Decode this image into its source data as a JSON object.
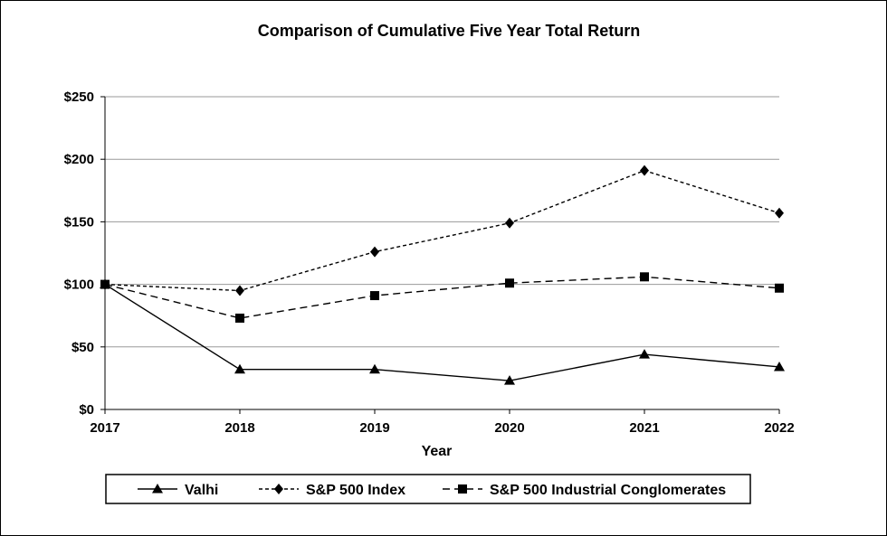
{
  "chart_data": {
    "type": "line",
    "title": "Comparison of Cumulative Five Year Total Return",
    "xlabel": "Year",
    "ylabel": "",
    "x": [
      "2017",
      "2018",
      "2019",
      "2020",
      "2021",
      "2022"
    ],
    "ylim": [
      0,
      250
    ],
    "yticks": [
      0,
      50,
      100,
      150,
      200,
      250
    ],
    "ytick_labels": [
      "$0",
      "$50",
      "$100",
      "$150",
      "$200",
      "$250"
    ],
    "grid": true,
    "legend_position": "bottom",
    "series": [
      {
        "name": "Valhi",
        "values": [
          100,
          32,
          32,
          23,
          44,
          34
        ],
        "marker": "triangle",
        "dash": "solid",
        "color": "#000000"
      },
      {
        "name": "S&P 500 Index",
        "values": [
          100,
          95,
          126,
          149,
          191,
          157
        ],
        "marker": "diamond",
        "dash": "short-dash",
        "color": "#000000"
      },
      {
        "name": "S&P 500 Industrial Conglomerates",
        "values": [
          100,
          73,
          91,
          101,
          106,
          97
        ],
        "marker": "square",
        "dash": "long-dash",
        "color": "#000000"
      }
    ]
  }
}
